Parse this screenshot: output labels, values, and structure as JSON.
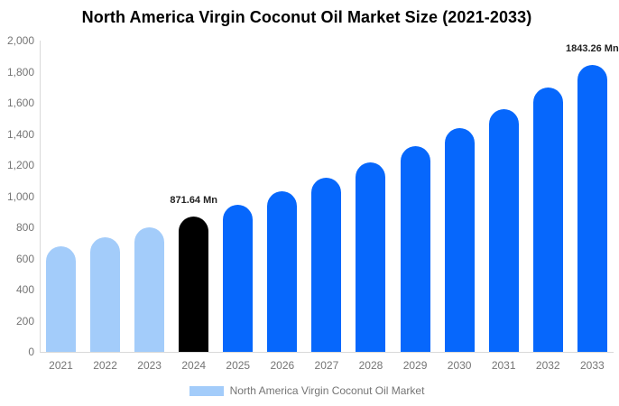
{
  "chart_data": {
    "type": "bar",
    "title": "North America Virgin Coconut Oil Market Size (2021-2033)",
    "unit": "Mn",
    "categories": [
      "2021",
      "2022",
      "2023",
      "2024",
      "2025",
      "2026",
      "2027",
      "2028",
      "2029",
      "2030",
      "2031",
      "2032",
      "2033"
    ],
    "values": [
      679,
      738,
      802,
      871.64,
      947,
      1029,
      1119,
      1216,
      1321,
      1436,
      1561,
      1696,
      1843.26
    ],
    "color_keys": [
      "past",
      "past",
      "past",
      "base",
      "forecast",
      "forecast",
      "forecast",
      "forecast",
      "forecast",
      "forecast",
      "forecast",
      "forecast",
      "forecast"
    ],
    "colors": {
      "past": "#A3CCFA",
      "base": "#000000",
      "forecast": "#0667FC"
    },
    "ylim": [
      0,
      2000
    ],
    "ytick_step": 200,
    "ytick_labels": [
      "0",
      "200",
      "400",
      "600",
      "800",
      "1,000",
      "1,200",
      "1,400",
      "1,600",
      "1,800",
      "2,000"
    ],
    "grid": false,
    "annotations": [
      {
        "category": "2024",
        "text": "871.64 Mn"
      },
      {
        "category": "2033",
        "text": "1843.26 Mn"
      }
    ],
    "legend": {
      "label": "North America Virgin Coconut Oil Market",
      "position": "bottom",
      "swatch_color": "#A3CCFA"
    },
    "axis_color": "#d9d9d9",
    "tick_text_color": "#757575"
  }
}
